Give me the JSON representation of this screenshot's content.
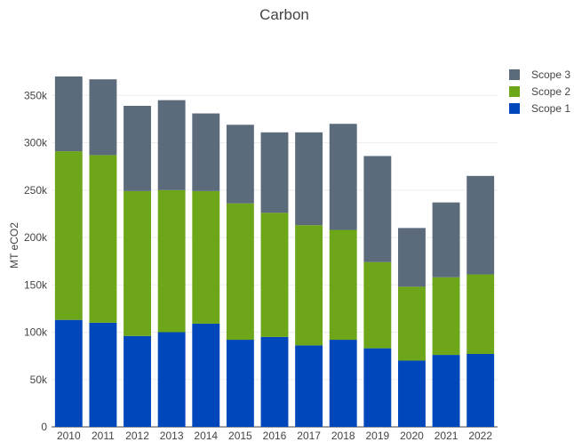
{
  "chart_data": {
    "type": "bar",
    "stacked": true,
    "title": "Carbon",
    "xlabel": "",
    "ylabel": "MT eCO2",
    "categories": [
      "2010",
      "2011",
      "2012",
      "2013",
      "2014",
      "2015",
      "2016",
      "2017",
      "2018",
      "2019",
      "2020",
      "2021",
      "2022"
    ],
    "series": [
      {
        "name": "Scope 1",
        "color": "#0047BB",
        "values": [
          113000,
          110000,
          96000,
          100000,
          109000,
          92000,
          95000,
          86000,
          92000,
          83000,
          70000,
          76000,
          77000
        ]
      },
      {
        "name": "Scope 2",
        "color": "#6DA618",
        "values": [
          178000,
          177000,
          153000,
          150000,
          140000,
          144000,
          131000,
          127000,
          116000,
          91000,
          78000,
          82000,
          84000
        ]
      },
      {
        "name": "Scope 3",
        "color": "#5B6B7B",
        "values": [
          79000,
          80000,
          90000,
          95000,
          82000,
          83000,
          85000,
          98000,
          112000,
          112000,
          62000,
          79000,
          104000
        ]
      }
    ],
    "ylim": [
      0,
      370000
    ],
    "yticks": [
      0,
      50000,
      100000,
      150000,
      200000,
      250000,
      300000,
      350000
    ],
    "yticklabels": [
      "0",
      "50k",
      "100k",
      "150k",
      "200k",
      "250k",
      "300k",
      "350k"
    ],
    "legend": {
      "placement": "top-right",
      "order": [
        "Scope 3",
        "Scope 2",
        "Scope 1"
      ]
    },
    "grid": true,
    "grid_color": "#eeeeee"
  }
}
